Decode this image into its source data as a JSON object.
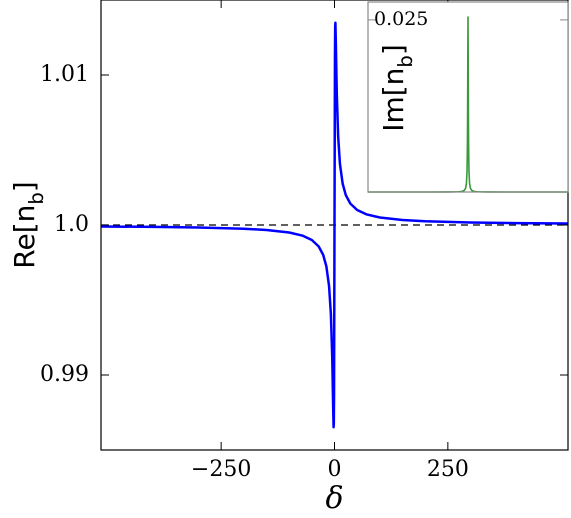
{
  "chart_data": [
    {
      "type": "line",
      "xlabel": "δ",
      "ylabel": "Re[n_b]",
      "x": [
        -515,
        -400,
        -300,
        -200,
        -150,
        -100,
        -70,
        -50,
        -35,
        -25,
        -18,
        -12,
        -8,
        -5,
        -3,
        -2,
        -1.5,
        -1,
        0,
        1,
        1.5,
        2,
        3,
        5,
        8,
        12,
        18,
        25,
        35,
        50,
        70,
        100,
        150,
        200,
        300,
        400,
        515
      ],
      "series": [
        {
          "color": "#0000ff",
          "values": [
            0.9999,
            0.999875,
            0.999833,
            0.99975,
            0.999667,
            0.9995,
            0.999286,
            0.999001,
            0.998574,
            0.998011,
            0.99725,
            0.99593,
            0.99407,
            0.9912,
            0.98792,
            0.98652,
            0.98677,
            0.98869,
            1.0,
            1.01131,
            1.01323,
            1.01348,
            1.01208,
            1.0088,
            1.00593,
            1.00407,
            1.00275,
            1.001989,
            1.001426,
            1.000999,
            1.000714,
            1.0005,
            1.000333,
            1.00025,
            1.000167,
            1.000125,
            1.0001
          ]
        }
      ],
      "hline": 1.0,
      "xlim": [
        -515,
        515
      ],
      "ylim": [
        0.985,
        1.015
      ],
      "xticks": [
        {
          "value": -250,
          "label": "−250"
        },
        0,
        250
      ],
      "yticks": [
        0.99,
        {
          "value": 1.0,
          "label": "1.0"
        },
        1.01
      ]
    },
    {
      "type": "line",
      "ylabel": "Im[n_b]",
      "x": [
        -515,
        -200,
        -100,
        -50,
        -35,
        -25,
        -18,
        -12,
        -8,
        -5,
        -3,
        -2,
        -1.5,
        -1,
        0,
        1,
        1.5,
        2,
        3,
        5,
        8,
        12,
        18,
        25,
        35,
        50,
        100,
        200,
        515
      ],
      "series": [
        {
          "color": "#3a9a3a",
          "values": [
            3e-07,
            2e-06,
            8.7e-06,
            3.48e-05,
            7.1e-05,
            0.000138,
            0.000265,
            0.00059,
            0.00129,
            0.00306,
            0.007,
            0.01172,
            0.01534,
            0.01967,
            0.02542,
            0.01967,
            0.01534,
            0.01172,
            0.007,
            0.00306,
            0.00129,
            0.00059,
            0.000265,
            0.000138,
            7.1e-05,
            3.48e-05,
            8.7e-06,
            2e-06,
            3e-07
          ]
        }
      ],
      "xlim": [
        -515,
        515
      ],
      "ylim": [
        0,
        0.0276
      ],
      "yticks": [
        0.025
      ]
    }
  ]
}
